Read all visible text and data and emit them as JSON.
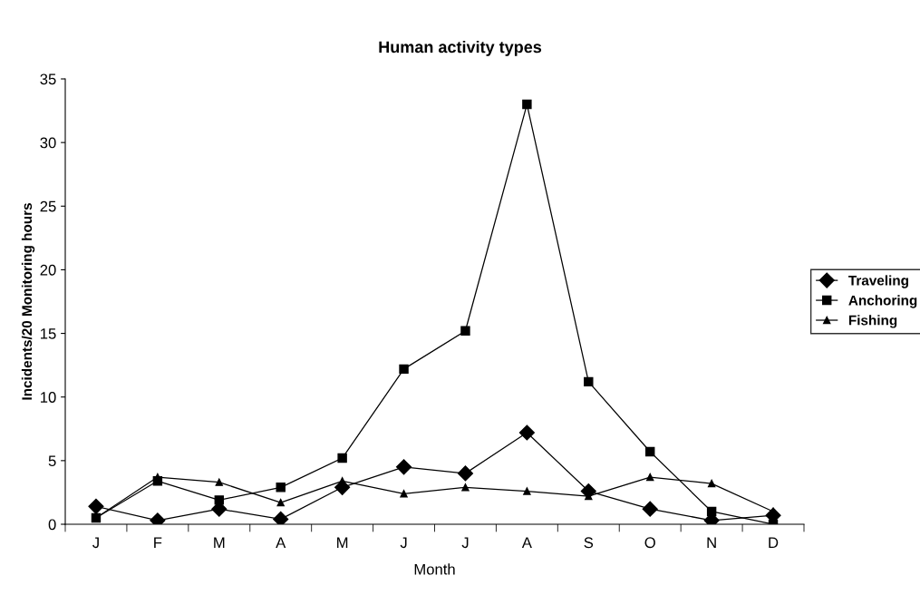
{
  "chart_data": {
    "type": "line",
    "title": "Human activity types",
    "xlabel": "Month",
    "ylabel": "Incidents/20 Monitoring hours",
    "categories": [
      "J",
      "F",
      "M",
      "A",
      "M",
      "J",
      "J",
      "A",
      "S",
      "O",
      "N",
      "D"
    ],
    "series": [
      {
        "name": "Traveling",
        "color": "#000000",
        "marker": "diamond",
        "values": [
          1.4,
          0.3,
          1.2,
          0.4,
          2.9,
          4.5,
          4.0,
          7.2,
          2.6,
          1.2,
          0.3,
          0.7
        ]
      },
      {
        "name": "Anchoring",
        "color": "#000000",
        "marker": "square",
        "values": [
          0.5,
          3.4,
          1.9,
          2.9,
          5.2,
          12.2,
          15.2,
          33.0,
          11.2,
          5.7,
          1.0,
          0.0
        ]
      },
      {
        "name": "Fishing",
        "color": "#000000",
        "marker": "triangle",
        "values": [
          0.5,
          3.7,
          3.3,
          1.7,
          3.4,
          2.4,
          2.9,
          2.6,
          2.2,
          3.7,
          3.2,
          1.0
        ]
      }
    ],
    "ylim": [
      0,
      35
    ],
    "yticks": [
      0,
      5,
      10,
      15,
      20,
      25,
      30,
      35
    ],
    "grid": false,
    "legend": "right",
    "line_style": "solid"
  }
}
